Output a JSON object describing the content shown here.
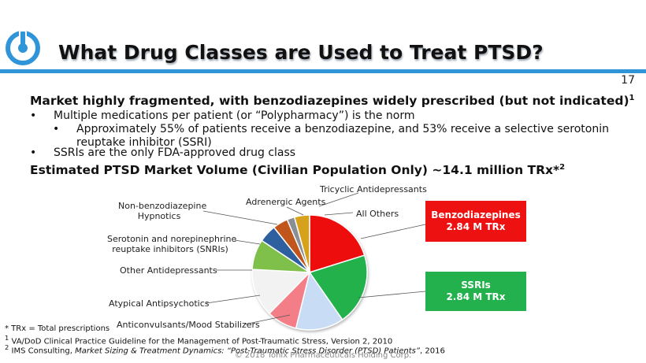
{
  "slide": {
    "title": "What Drug Classes are Used to Treat PTSD?",
    "page_number": "17",
    "headline": "Market highly fragmented, with benzodiazepines widely prescribed (but not indicated)",
    "headline_sup": "1",
    "bullets": [
      {
        "text": "Multiple medications per patient (or “Polypharmacy”) is the norm"
      },
      {
        "text": "Approximately 55% of patients receive a benzodiazepine, and 53% receive a selective serotonin"
      },
      {
        "text": "reuptake inhibitor (SSRI)"
      },
      {
        "text": "SSRIs are the only FDA-approved drug class"
      }
    ],
    "bullet_char": "•",
    "subheading": "Estimated PTSD Market Volume (Civilian Population Only) ~14.1 million TRx*",
    "subheading_sup": "2",
    "colors": {
      "accent": "#2f95d8",
      "benzo": "#ee1111",
      "ssri": "#22b14c"
    }
  },
  "chart_data": {
    "type": "pie",
    "labels": [
      "Benzodiazepines",
      "SSRIs",
      "Anticonvulsants/Mood Stabilizers",
      "Atypical Antipsychotics",
      "Other Antidepressants",
      "Serotonin and norepinephrine reuptake inhibitors (SNRIs)",
      "Non-benzodiazepine Hypnotics",
      "Adrenergic Agents",
      "Tricyclic Antidepressants",
      "All Others"
    ],
    "values": [
      2.84,
      2.84,
      1.9,
      1.2,
      1.9,
      1.2,
      0.7,
      0.6,
      0.3,
      0.6
    ],
    "colors": [
      "#ee1111",
      "#22b14c",
      "#c9dcf5",
      "#f47e88",
      "#f2f2f2",
      "#7fc04c",
      "#2e5f9e",
      "#c0561c",
      "#8a8f97",
      "#d6a21e"
    ],
    "callouts": [
      {
        "line1": "Benzodiazepines",
        "line2": "2.84 M TRx",
        "color": "#ee1111"
      },
      {
        "line1": "SSRIs",
        "line2": "2.84 M TRx",
        "color": "#22b14c"
      }
    ],
    "slice_labels": {
      "tricyclic": "Tricyclic Antidepressants",
      "adrenergic": "Adrenergic Agents",
      "all_others": "All Others",
      "nonbenzo_1": "Non-benzodiazepine",
      "nonbenzo_2": "Hypnotics",
      "snri_1": "Serotonin and norepinephrine",
      "snri_2": "reuptake inhibitors (SNRIs)",
      "other_ad": "Other Antidepressants",
      "atypical": "Atypical Antipsychotics",
      "anticonv": "Anticonvulsants/Mood Stabilizers"
    }
  },
  "footnotes": {
    "trx": "* TRx = Total prescriptions",
    "fn1_sup": "1",
    "fn1": " VA/DoD Clinical Practice Guideline for the Management of Post-Traumatic Stress, Version 2, 2010",
    "fn2_sup": "2",
    "fn2_pre": " IMS Consulting, ",
    "fn2_italic": "Market Sizing & Treatment Dynamics: “Post-Traumatic Stress Disorder (PTSD) Patients”",
    "fn2_post": ", 2016",
    "copyright": "© 2018 Tonix Pharmaceuticals Holding Corp."
  }
}
